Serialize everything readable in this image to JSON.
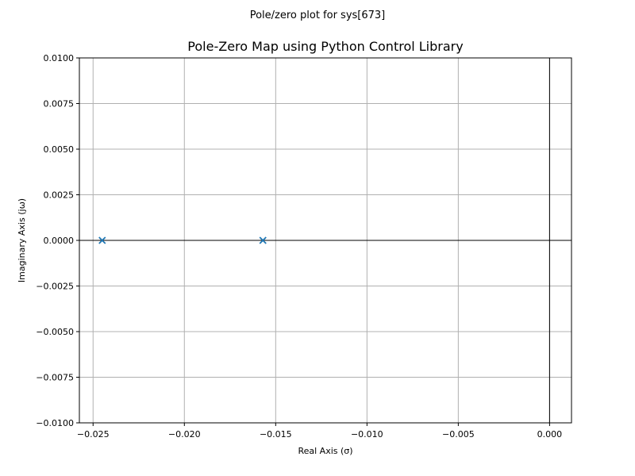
{
  "chart_data": {
    "type": "scatter",
    "suptitle": "Pole/zero plot for sys[673]",
    "title": "Pole-Zero Map using Python Control Library",
    "xlabel": "Real Axis (σ)",
    "ylabel": "Imaginary Axis (jω)",
    "xlim": [
      -0.02575,
      0.0012
    ],
    "ylim": [
      -0.01,
      0.01
    ],
    "grid": true,
    "x_ticks": [
      {
        "value": -0.025,
        "label": "−0.025"
      },
      {
        "value": -0.02,
        "label": "−0.020"
      },
      {
        "value": -0.015,
        "label": "−0.015"
      },
      {
        "value": -0.01,
        "label": "−0.010"
      },
      {
        "value": -0.005,
        "label": "−0.005"
      },
      {
        "value": 0.0,
        "label": "0.000"
      }
    ],
    "y_ticks": [
      {
        "value": 0.01,
        "label": "0.0100"
      },
      {
        "value": 0.0075,
        "label": "0.0075"
      },
      {
        "value": 0.005,
        "label": "0.0050"
      },
      {
        "value": 0.0025,
        "label": "0.0025"
      },
      {
        "value": 0.0,
        "label": "0.0000"
      },
      {
        "value": -0.0025,
        "label": "−0.0025"
      },
      {
        "value": -0.005,
        "label": "−0.0050"
      },
      {
        "value": -0.0075,
        "label": "−0.0075"
      },
      {
        "value": -0.01,
        "label": "−0.0100"
      }
    ],
    "series": [
      {
        "name": "poles",
        "marker": "x",
        "color": "#1f77b4",
        "points": [
          {
            "x": -0.0245,
            "y": 0.0
          },
          {
            "x": -0.0157,
            "y": 0.0
          }
        ]
      }
    ],
    "reference_lines": {
      "x": 0.0,
      "y": 0.0
    }
  }
}
